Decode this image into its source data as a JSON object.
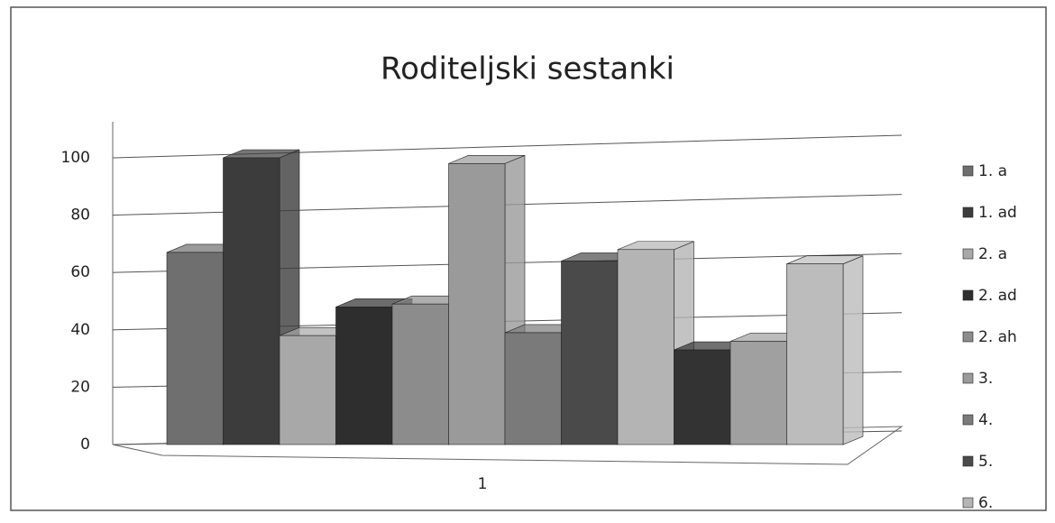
{
  "chart_data": {
    "type": "bar3d",
    "title": "Roditeljski sestanki",
    "categories": [
      "1"
    ],
    "series": [
      {
        "name": "1. a",
        "color": "#6f6f6f",
        "values": [
          67
        ]
      },
      {
        "name": "1. ad",
        "color": "#3c3c3c",
        "values": [
          100
        ]
      },
      {
        "name": "2. a",
        "color": "#a8a8a8",
        "values": [
          38
        ]
      },
      {
        "name": "2. ad",
        "color": "#2e2e2e",
        "values": [
          48
        ]
      },
      {
        "name": "2. ah",
        "color": "#8c8c8c",
        "values": [
          49
        ]
      },
      {
        "name": "3.",
        "color": "#9a9a9a",
        "values": [
          98
        ]
      },
      {
        "name": "4.",
        "color": "#7a7a7a",
        "values": [
          39
        ]
      },
      {
        "name": "5.",
        "color": "#4a4a4a",
        "values": [
          64
        ]
      },
      {
        "name": "6.",
        "color": "#b4b4b4",
        "values": [
          68
        ]
      },
      {
        "name": null,
        "color": "#333333",
        "values": [
          33
        ]
      },
      {
        "name": null,
        "color": "#a0a0a0",
        "values": [
          36
        ]
      },
      {
        "name": null,
        "color": "#bcbcbc",
        "values": [
          63
        ]
      }
    ],
    "ylim": [
      0,
      100
    ],
    "yticks": [
      0,
      20,
      40,
      60,
      80,
      100
    ],
    "grid": true,
    "legend": "right"
  }
}
